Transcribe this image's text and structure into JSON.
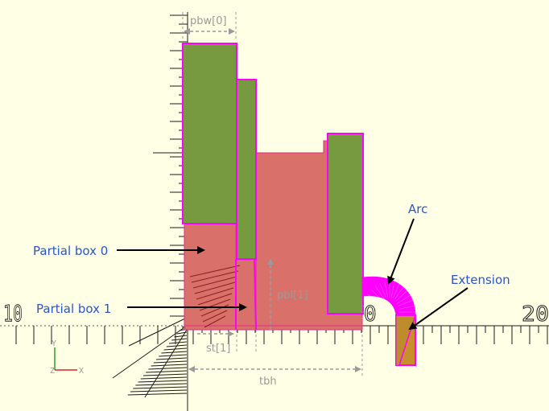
{
  "colors": {
    "background": "#ffffe5",
    "box_fill": "#d9716a",
    "box_edge": "#e7298a",
    "panel_green": "#77993f",
    "magenta": "#ff00ff",
    "extension_fill": "#c98f2a",
    "annotation_blue": "#2b55c8",
    "dimension_gray": "#9a9a9a",
    "tick": "#1a1a1a"
  },
  "annotations": {
    "partial_box_0": "Partial box 0",
    "partial_box_1": "Partial box 1",
    "arc": "Arc",
    "extension": "Extension"
  },
  "dimensions": {
    "pbw0": "pbw[0]",
    "pbl1": "pbl[1]",
    "st1": "st[1]",
    "tbh": "tbh"
  },
  "ruler_labels": {
    "left": "10",
    "middle": "0",
    "right": "20"
  },
  "axes": {
    "y": "Y",
    "z": "Z",
    "x": "X"
  }
}
